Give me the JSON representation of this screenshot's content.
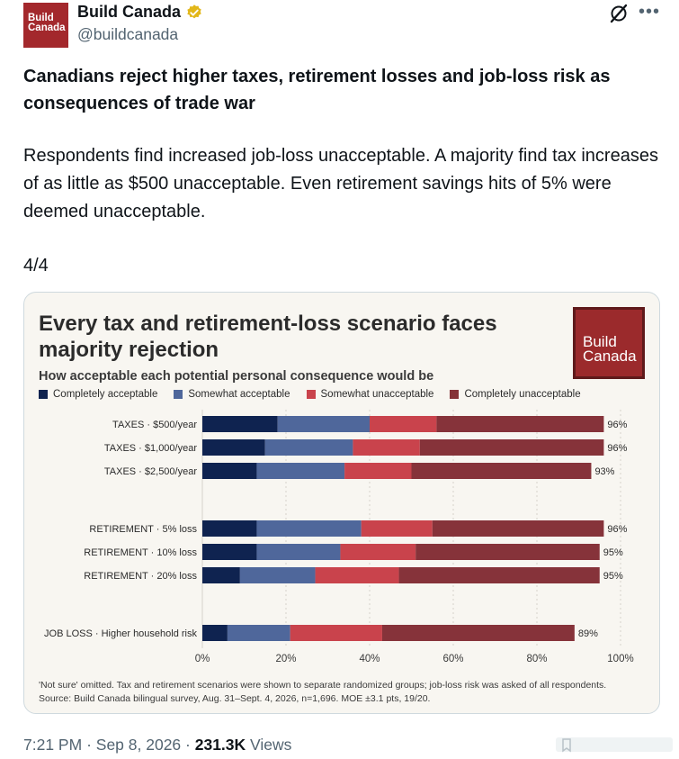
{
  "author": {
    "avatar_line1": "Build",
    "avatar_line2": "Canada",
    "name": "Build Canada",
    "handle": "@buildcanada"
  },
  "icons": {
    "verified": "verified-badge-icon",
    "grok": "grok-icon",
    "more": "more-icon",
    "bookmark": "bookmark-icon"
  },
  "post": {
    "headline": "Canadians reject higher taxes, retirement losses and job-loss risk as consequences of trade war",
    "body": "Respondents find increased job-loss unacceptable. A majority find tax increases of as little as $500 unacceptable. Even retirement savings hits of 5% were deemed unacceptable.",
    "count": "4/4",
    "more_symbol": "•••"
  },
  "card": {
    "logo_line1": "Build",
    "logo_line2": "Canada",
    "note_line1": "'Not sure' omitted. Tax and retirement scenarios were shown to separate randomized groups; job-loss risk was asked of all respondents.",
    "note_line2": "Source: Build Canada bilingual survey, Aug. 31–Sept. 4, 2026, n=1,696. MOE ±3.1 pts, 19/20."
  },
  "colors": {
    "completely_acceptable": "#0f2350",
    "somewhat_acceptable": "#4f679b",
    "somewhat_unacceptable": "#c9434c",
    "completely_unacceptable": "#86333a",
    "accent_red": "#9b2a2c",
    "verified_gold": "#e2b719"
  },
  "chart_data": {
    "type": "bar",
    "orientation": "horizontal",
    "stacked": true,
    "title": "Every tax and retirement-loss scenario faces majority rejection",
    "subtitle": "How acceptable each potential personal consequence would be",
    "categories": [
      "TAXES · $500/year",
      "TAXES · $1,000/year",
      "TAXES · $2,500/year",
      "RETIREMENT · 5% loss",
      "RETIREMENT · 10% loss",
      "RETIREMENT · 20% loss",
      "JOB LOSS · Higher household risk"
    ],
    "groups": [
      [
        0,
        1,
        2
      ],
      [
        3,
        4,
        5
      ],
      [
        6
      ]
    ],
    "series": [
      {
        "name": "Completely acceptable",
        "values": [
          18,
          15,
          13,
          13,
          13,
          9,
          6
        ]
      },
      {
        "name": "Somewhat acceptable",
        "values": [
          22,
          21,
          21,
          25,
          20,
          18,
          15
        ]
      },
      {
        "name": "Somewhat unacceptable",
        "values": [
          16,
          16,
          16,
          17,
          18,
          20,
          22
        ]
      },
      {
        "name": "Completely unacceptable",
        "values": [
          40,
          44,
          43,
          41,
          44,
          48,
          46
        ]
      }
    ],
    "totals": [
      "96%",
      "96%",
      "93%",
      "96%",
      "95%",
      "95%",
      "89%"
    ],
    "x_ticks": [
      "0%",
      "20%",
      "40%",
      "60%",
      "80%",
      "100%"
    ],
    "xlim": [
      0,
      100
    ],
    "grid": true,
    "legend_position": "top-left"
  },
  "meta": {
    "time": "7:21 PM",
    "date": "Sep 8, 2026",
    "views_count": "231.3K",
    "views_label": "Views",
    "separator": "·"
  }
}
